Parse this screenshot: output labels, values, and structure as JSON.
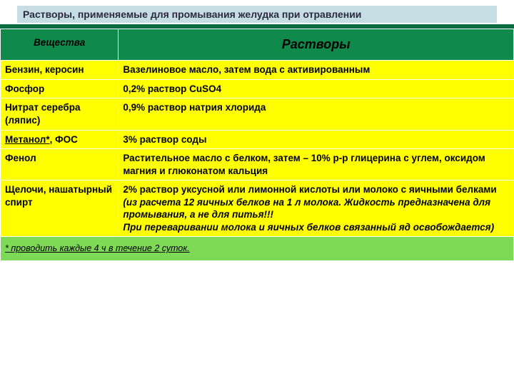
{
  "title": "Растворы, применяемые для промывания желудка при отравлении",
  "colors": {
    "title_bg": "#c6dde4",
    "title_text": "#2b2b3d",
    "underline": "#0a6b3f",
    "header_bg": "#0f8a4a",
    "header_text": "#000000",
    "row_bg": "#ffff00",
    "row_text": "#000000",
    "note_bg": "#7ed957",
    "border": "#ffffff"
  },
  "columns": {
    "substance": "Вещества",
    "solution": "Растворы"
  },
  "rows": [
    {
      "substance": "Бензин, керосин",
      "solution": "Вазелиновое масло, затем вода с активированным"
    },
    {
      "substance": "Фосфор",
      "solution": "0,2% раствор CuSO4"
    },
    {
      "substance": "Нитрат серебра (ляпис)",
      "solution": "0,9% раствор натрия хлорида"
    },
    {
      "substance_html": "methanol",
      "substance_methanol": "Метанол*",
      "substance_rest": ", ФОС",
      "solution": "3% раствор соды"
    },
    {
      "substance": "Фенол",
      "solution": "Растительное масло с белком, затем – 10% р-р глицерина с углем, оксидом магния и глюконатом кальция"
    },
    {
      "substance": "Щелочи, нашатырный спирт",
      "solution_plain": "2% раствор уксусной или лимонной кислоты или молоко с яичными белками",
      "solution_italic": "(из расчета 12 яичных белков на 1 л молока. Жидкость предназначена для промывания, а не для питья!!!\nПри переваривании молока и яичных белков связанный яд освобождается)"
    }
  ],
  "footnote": " * проводить каждые 4 ч в течение 2 суток."
}
